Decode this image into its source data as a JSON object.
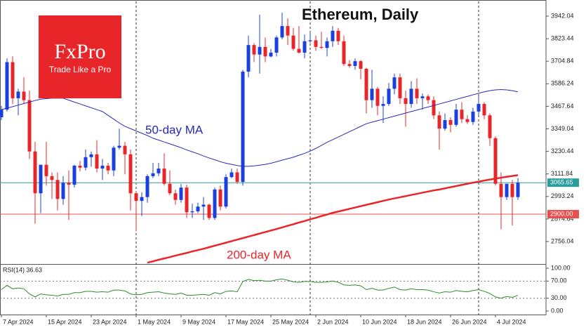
{
  "chart_data": {
    "type": "candlestick",
    "title": "Ethereum, Daily",
    "logo": {
      "name": "FxPro",
      "tagline": "Trade Like a Pro"
    },
    "categories": [
      "7 Apr 2024",
      null,
      null,
      null,
      null,
      null,
      null,
      null,
      "15 Apr 2024",
      null,
      null,
      null,
      null,
      null,
      null,
      null,
      "23 Apr 2024",
      null,
      null,
      null,
      null,
      null,
      null,
      null,
      "1 May 2024",
      null,
      null,
      null,
      null,
      null,
      null,
      null,
      "9 May 2024",
      null,
      null,
      null,
      null,
      null,
      null,
      null,
      "17 May 2024",
      null,
      null,
      null,
      null,
      null,
      null,
      null,
      "25 May 2024",
      null,
      null,
      null,
      null,
      null,
      null,
      null,
      "2 Jun 2024",
      null,
      null,
      null,
      null,
      null,
      null,
      null,
      "10 Jun 2024",
      null,
      null,
      null,
      null,
      null,
      null,
      null,
      "18 Jun 2024",
      null,
      null,
      null,
      null,
      null,
      null,
      null,
      "26 Jun 2024",
      null,
      null,
      null,
      null,
      null,
      null,
      null,
      "4 Jul 2024",
      null,
      null,
      null,
      null
    ],
    "open": [
      3410,
      3450,
      3700,
      3510,
      3545,
      3500,
      3230,
      3010,
      3160,
      3100,
      3080,
      2980,
      3065,
      3055,
      3155,
      3145,
      3200,
      3215,
      3140,
      3155,
      3130,
      3250,
      3260,
      3215,
      3010,
      2970,
      2990,
      3100,
      3115,
      3140,
      3060,
      3010,
      2975,
      3040,
      2910,
      2915,
      2940,
      2950,
      2880,
      3030,
      2940,
      3095,
      3120,
      3070,
      3650,
      3790,
      3740,
      3780,
      3730,
      3750,
      3830,
      3890,
      3840,
      3770,
      3750,
      3810,
      3815,
      3780,
      3775,
      3810,
      3865,
      3810,
      3690,
      3680,
      3705,
      3665,
      3500,
      3560,
      3470,
      3480,
      3560,
      3620,
      3510,
      3480,
      3560,
      3510,
      3520,
      3500,
      3420,
      3350,
      3395,
      3370,
      3450,
      3400,
      3385,
      3440,
      3480,
      3420,
      3300,
      3060,
      2990,
      3060,
      2990
    ],
    "high": [
      3470,
      3720,
      3730,
      3560,
      3620,
      3550,
      3280,
      3160,
      3280,
      3120,
      3120,
      3100,
      3130,
      3160,
      3180,
      3240,
      3230,
      3290,
      3190,
      3170,
      3260,
      3350,
      3280,
      3240,
      3020,
      3015,
      3110,
      3170,
      3170,
      3220,
      3130,
      3030,
      3060,
      3055,
      2955,
      2960,
      2990,
      2955,
      3040,
      3050,
      3110,
      3140,
      3140,
      3660,
      3840,
      3800,
      3950,
      3830,
      3770,
      3840,
      3960,
      3930,
      3880,
      3890,
      3845,
      3860,
      3840,
      3860,
      3830,
      3890,
      3880,
      3840,
      3710,
      3720,
      3710,
      3670,
      3660,
      3570,
      3520,
      3590,
      3640,
      3640,
      3550,
      3600,
      3615,
      3535,
      3530,
      3520,
      3440,
      3430,
      3410,
      3480,
      3490,
      3420,
      3460,
      3520,
      3490,
      3430,
      3310,
      3120,
      3060,
      3080,
      3090
    ],
    "low": [
      3395,
      3440,
      3480,
      3420,
      3480,
      3190,
      2850,
      2905,
      3050,
      2980,
      2920,
      2950,
      2870,
      3040,
      3125,
      3130,
      3150,
      3120,
      3080,
      3110,
      3100,
      3240,
      3110,
      2920,
      2810,
      2890,
      2960,
      3090,
      3100,
      3050,
      3000,
      2950,
      2960,
      2880,
      2880,
      2905,
      2870,
      2870,
      2870,
      2920,
      2930,
      3090,
      3060,
      3050,
      3620,
      3700,
      3640,
      3700,
      3725,
      3730,
      3820,
      3790,
      3760,
      3745,
      3720,
      3800,
      3760,
      3770,
      3730,
      3780,
      3790,
      3680,
      3670,
      3660,
      3610,
      3430,
      3460,
      3420,
      3380,
      3470,
      3530,
      3480,
      3360,
      3460,
      3480,
      3450,
      3480,
      3400,
      3240,
      3340,
      3330,
      3360,
      3380,
      3375,
      3370,
      3420,
      3400,
      3260,
      3050,
      2820,
      2975,
      2840,
      2975
    ],
    "close": [
      3450,
      3700,
      3510,
      3545,
      3500,
      3230,
      3010,
      3160,
      3100,
      3080,
      2980,
      3065,
      3055,
      3155,
      3145,
      3200,
      3215,
      3140,
      3155,
      3130,
      3250,
      3260,
      3215,
      3010,
      2970,
      2990,
      3100,
      3115,
      3140,
      3060,
      3010,
      2975,
      3040,
      2910,
      2915,
      2940,
      2950,
      2880,
      3030,
      2940,
      3095,
      3120,
      3070,
      3650,
      3790,
      3740,
      3780,
      3730,
      3750,
      3830,
      3890,
      3840,
      3770,
      3750,
      3810,
      3815,
      3780,
      3775,
      3810,
      3865,
      3810,
      3690,
      3680,
      3705,
      3665,
      3500,
      3560,
      3470,
      3480,
      3560,
      3620,
      3510,
      3480,
      3560,
      3510,
      3520,
      3500,
      3420,
      3350,
      3395,
      3370,
      3450,
      3400,
      3385,
      3440,
      3480,
      3420,
      3300,
      3060,
      2990,
      3060,
      2990,
      3065.65
    ],
    "up_color": "#1a3fe0",
    "down_color": "#e8262a",
    "series": [
      {
        "name": "50-day MA",
        "color": "#2a2ab8",
        "values": [
          3450,
          3458,
          3466,
          3474,
          3482,
          3490,
          3498,
          3505,
          3508,
          3510,
          3510,
          3510,
          3500,
          3490,
          3480,
          3470,
          3460,
          3450,
          3440,
          3420,
          3400,
          3380,
          3362,
          3350,
          3338,
          3326,
          3314,
          3300,
          3290,
          3280,
          3270,
          3260,
          3250,
          3238,
          3228,
          3218,
          3206,
          3196,
          3186,
          3176,
          3168,
          3162,
          3156,
          3152,
          3152,
          3154,
          3158,
          3162,
          3168,
          3176,
          3184,
          3192,
          3200,
          3210,
          3220,
          3232,
          3246,
          3262,
          3278,
          3292,
          3306,
          3320,
          3334,
          3348,
          3362,
          3376,
          3384,
          3392,
          3400,
          3408,
          3416,
          3424,
          3432,
          3440,
          3448,
          3456,
          3464,
          3472,
          3480,
          3488,
          3496,
          3504,
          3512,
          3520,
          3528,
          3536,
          3544,
          3550,
          3554,
          3556,
          3554,
          3550,
          3544
        ]
      },
      {
        "name": "200-day MA",
        "color": "#e8262a",
        "values": [
          null,
          null,
          null,
          null,
          null,
          null,
          null,
          null,
          null,
          null,
          null,
          null,
          null,
          null,
          null,
          null,
          null,
          null,
          null,
          null,
          null,
          null,
          null,
          null,
          null,
          null,
          2645,
          2652,
          2660,
          2667,
          2674,
          2682,
          2689,
          2696,
          2704,
          2711,
          2718,
          2726,
          2734,
          2742,
          2750,
          2758,
          2766,
          2774,
          2782,
          2790,
          2798,
          2806,
          2814,
          2822,
          2830,
          2839,
          2847,
          2856,
          2864,
          2873,
          2881,
          2890,
          2898,
          2907,
          2914,
          2921,
          2928,
          2935,
          2942,
          2949,
          2956,
          2963,
          2970,
          2977,
          2983,
          2989,
          2995,
          3001,
          3007,
          3013,
          3019,
          3025,
          3030,
          3036,
          3042,
          3048,
          3054,
          3060,
          3066,
          3071,
          3077,
          3082,
          3087,
          3092,
          3097,
          3101,
          3105
        ]
      }
    ],
    "levels": [
      {
        "value": 3065.65,
        "label": "3065.65",
        "color": "#2a9d9d"
      },
      {
        "value": 2900,
        "label": "2900.00",
        "color": "#e85050"
      }
    ],
    "ylim": [
      2641.5,
      4019.6
    ],
    "yticks": [
      2756.04,
      2874.64,
      2993.24,
      3111.84,
      3230.44,
      3349.04,
      3467.64,
      3586.24,
      3704.84,
      3823.44,
      3942.04
    ],
    "rsi": {
      "label": "RSI(14) 36.63",
      "color": "#2e8b2e",
      "values": [
        50,
        60,
        52,
        54,
        52,
        40,
        33,
        40,
        38,
        37,
        35,
        39,
        39,
        43,
        43,
        46,
        46,
        44,
        45,
        44,
        49,
        49,
        47,
        40,
        38,
        39,
        43,
        44,
        45,
        42,
        40,
        39,
        42,
        37,
        37,
        38,
        39,
        37,
        43,
        40,
        46,
        47,
        45,
        69,
        74,
        71,
        72,
        70,
        70,
        73,
        75,
        72,
        68,
        67,
        69,
        69,
        67,
        67,
        68,
        70,
        67,
        61,
        60,
        61,
        59,
        50,
        53,
        49,
        49,
        53,
        56,
        50,
        49,
        52,
        50,
        50,
        49,
        45,
        42,
        45,
        44,
        48,
        46,
        45,
        48,
        50,
        46,
        41,
        33,
        30,
        34,
        32,
        36.63
      ],
      "ylim": [
        -8.2,
        106.6
      ],
      "yticks": [
        {
          "value": 0,
          "label": "0.00"
        },
        {
          "value": 30,
          "label": "30.00"
        },
        {
          "value": 70,
          "label": "70.00"
        },
        {
          "value": 100,
          "label": "100.00"
        }
      ]
    }
  }
}
